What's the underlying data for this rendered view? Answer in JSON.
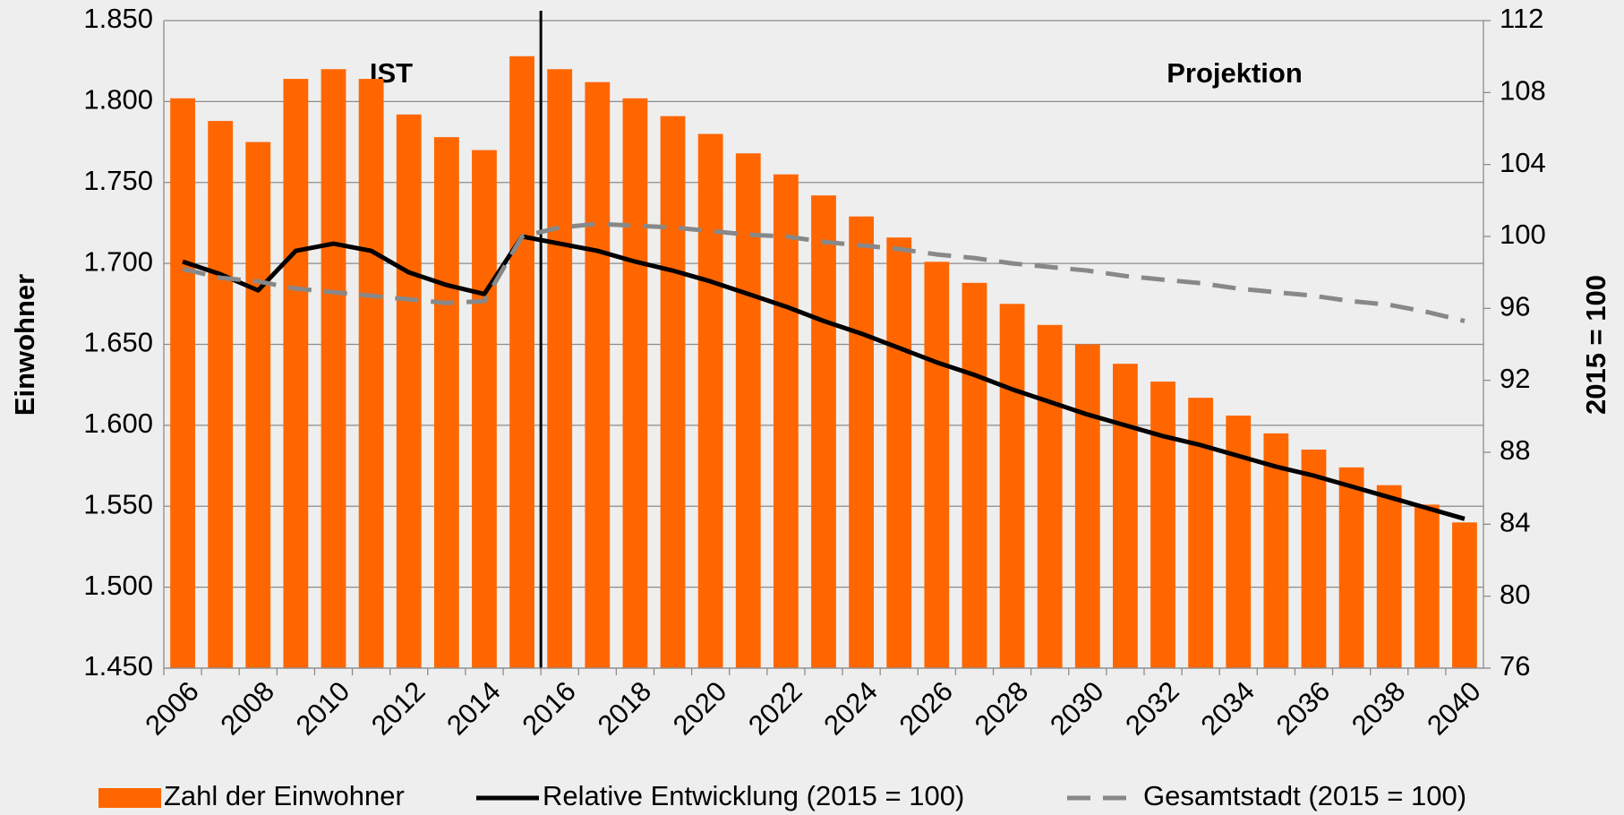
{
  "chart_data": {
    "type": "bar",
    "categories": [
      "2006",
      null,
      "2008",
      null,
      "2010",
      null,
      "2012",
      null,
      "2014",
      null,
      "2016",
      null,
      "2018",
      null,
      "2020",
      null,
      "2022",
      null,
      "2024",
      null,
      "2026",
      null,
      "2028",
      null,
      "2030",
      null,
      "2032",
      null,
      "2034",
      null,
      "2036",
      null,
      "2038",
      null,
      "2040"
    ],
    "series": [
      {
        "name": "Zahl der Einwohner",
        "type": "bar",
        "color": "#ff6600",
        "values": [
          1802,
          1788,
          1775,
          1814,
          1820,
          1814,
          1792,
          1778,
          1770,
          1828,
          1820,
          1812,
          1802,
          1791,
          1780,
          1768,
          1755,
          1742,
          1729,
          1716,
          1701,
          1688,
          1675,
          1662,
          1650,
          1638,
          1627,
          1617,
          1606,
          1595,
          1585,
          1574,
          1563,
          1551,
          1540
        ]
      },
      {
        "name": "Relative Entwicklung (2015 = 100)",
        "type": "line",
        "axis": "y2",
        "color": "#000000",
        "values": [
          98.6,
          97.9,
          97.0,
          99.2,
          99.6,
          99.2,
          98.0,
          97.3,
          96.8,
          100.0,
          99.6,
          99.2,
          98.6,
          98.1,
          97.5,
          96.8,
          96.1,
          95.3,
          94.6,
          93.8,
          93.0,
          92.3,
          91.5,
          90.8,
          90.1,
          89.5,
          88.9,
          88.4,
          87.8,
          87.2,
          86.7,
          86.1,
          85.5,
          84.9,
          84.3
        ]
      },
      {
        "name": "Gesamtstadt (2015 = 100)",
        "type": "line",
        "axis": "y2",
        "color": "#888888",
        "dashed": true,
        "values": [
          98.2,
          97.7,
          97.5,
          97.1,
          96.9,
          96.7,
          96.5,
          96.3,
          96.4,
          100.0,
          100.5,
          100.7,
          100.6,
          100.5,
          100.3,
          100.1,
          100.0,
          99.7,
          99.5,
          99.3,
          99.0,
          98.8,
          98.5,
          98.3,
          98.1,
          97.8,
          97.6,
          97.4,
          97.1,
          96.9,
          96.7,
          96.4,
          96.2,
          95.8,
          95.3
        ]
      }
    ],
    "ylabel": "Einwohner",
    "y2label": "2015 = 100",
    "ylim": [
      1450,
      1850
    ],
    "yticks": [
      {
        "value": 1450,
        "label": "1.450"
      },
      {
        "value": 1500,
        "label": "1.500"
      },
      {
        "value": 1550,
        "label": "1.550"
      },
      {
        "value": 1600,
        "label": "1.600"
      },
      {
        "value": 1650,
        "label": "1.650"
      },
      {
        "value": 1700,
        "label": "1.700"
      },
      {
        "value": 1750,
        "label": "1.750"
      },
      {
        "value": 1800,
        "label": "1.800"
      },
      {
        "value": 1850,
        "label": "1.850"
      }
    ],
    "y2lim": [
      76,
      112
    ],
    "y2ticks": [
      76,
      80,
      84,
      88,
      92,
      96,
      100,
      104,
      108,
      112
    ],
    "annotations": [
      "IST",
      "Projektion"
    ],
    "grid": true,
    "legend": "bottom"
  }
}
